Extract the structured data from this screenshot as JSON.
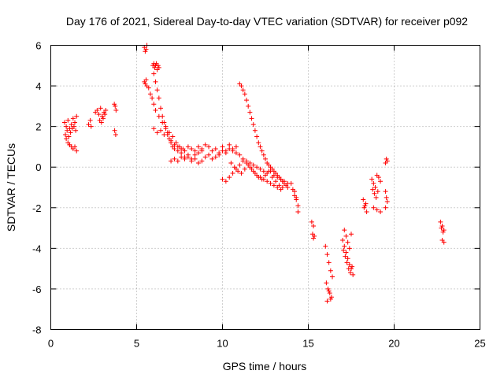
{
  "chart_data": {
    "type": "scatter",
    "title": "Day 176 of 2021, Sidereal Day-to-day VTEC variation (SDTVAR) for receiver p092",
    "xlabel": "GPS time / hours",
    "ylabel": "SDTVAR / TECUs",
    "xlim": [
      0,
      25
    ],
    "ylim": [
      -8,
      6
    ],
    "xticks": [
      0,
      5,
      10,
      15,
      20,
      25
    ],
    "yticks": [
      -8,
      -6,
      -4,
      -2,
      0,
      2,
      4,
      6
    ],
    "grid": true,
    "marker": "+",
    "color": "#ff0000",
    "series": [
      {
        "name": "SDTVAR",
        "x": [
          0.8,
          0.9,
          1.0,
          1.1,
          1.2,
          1.3,
          1.4,
          1.5,
          0.85,
          0.95,
          1.05,
          1.15,
          1.25,
          1.35,
          1.45,
          1.1,
          1.2,
          1.3,
          1.4,
          1.5,
          0.9,
          1.0,
          1.1,
          2.2,
          2.3,
          2.35,
          2.6,
          2.7,
          2.8,
          2.9,
          3.0,
          3.1,
          3.2,
          2.85,
          2.95,
          3.05,
          3.15,
          3.7,
          3.75,
          3.8,
          3.72,
          3.78,
          5.45,
          5.5,
          5.55,
          5.6,
          5.45,
          5.5,
          5.55,
          5.6,
          5.7,
          5.8,
          5.9,
          6.0,
          6.1,
          6.3,
          6.5,
          6.7,
          6.9,
          7.1,
          7.3,
          7.5,
          7.7,
          5.95,
          6.0,
          6.05,
          6.1,
          6.15,
          6.2,
          6.25,
          6.3,
          6.0,
          6.1,
          6.2,
          6.3,
          6.4,
          6.5,
          6.6,
          6.7,
          6.8,
          6.9,
          7.0,
          7.1,
          7.2,
          7.4,
          7.6,
          7.8,
          8.0,
          8.2,
          8.4,
          8.6,
          8.8,
          6.0,
          6.2,
          6.4,
          6.6,
          6.8,
          7.0,
          7.2,
          7.4,
          7.6,
          7.8,
          8.0,
          8.2,
          8.4,
          8.6,
          8.8,
          9.0,
          9.2,
          9.4,
          9.6,
          9.8,
          10.0,
          10.2,
          10.4,
          10.6,
          10.8,
          7.0,
          7.2,
          7.4,
          7.6,
          7.8,
          8.0,
          8.2,
          8.4,
          8.6,
          8.8,
          9.0,
          9.2,
          9.4,
          9.6,
          9.8,
          10.0,
          10.2,
          10.4,
          10.6,
          10.8,
          11.0,
          11.2,
          11.4,
          11.6,
          11.8,
          12.0,
          12.2,
          12.4,
          12.6,
          12.8,
          13.0,
          13.2,
          13.4,
          13.6,
          13.8,
          11.0,
          11.1,
          11.2,
          11.3,
          11.4,
          11.5,
          11.6,
          11.7,
          11.8,
          11.9,
          12.0,
          12.1,
          12.2,
          12.3,
          12.4,
          12.5,
          12.6,
          12.7,
          12.8,
          12.9,
          13.0,
          13.1,
          13.2,
          13.3,
          13.4,
          13.5,
          13.6,
          13.7,
          13.8,
          10.0,
          10.2,
          10.4,
          10.6,
          10.8,
          11.0,
          11.2,
          11.4,
          11.6,
          11.8,
          12.0,
          12.2,
          12.4,
          12.6,
          12.8,
          13.0,
          13.2,
          13.4,
          10.5,
          10.7,
          10.9,
          11.1,
          11.3,
          11.5,
          11.7,
          11.9,
          12.1,
          12.3,
          12.5,
          12.7,
          12.9,
          13.1,
          13.3,
          13.5,
          14.0,
          14.1,
          14.2,
          14.3,
          14.4,
          14.2,
          14.3,
          14.4,
          15.2,
          15.3,
          15.25,
          15.3,
          15.35,
          16.0,
          16.1,
          16.2,
          16.3,
          16.4,
          16.05,
          16.15,
          16.25,
          16.35,
          16.1,
          16.2,
          16.3,
          17.0,
          17.1,
          17.2,
          17.3,
          17.4,
          17.5,
          17.6,
          17.05,
          17.15,
          17.25,
          17.35,
          17.45,
          17.55,
          17.1,
          17.2,
          17.3,
          17.4,
          17.5,
          18.2,
          18.3,
          18.4,
          18.25,
          18.35,
          18.7,
          18.8,
          18.9,
          19.0,
          19.1,
          19.2,
          18.75,
          18.85,
          18.95,
          19.05,
          18.8,
          19.0,
          19.2,
          19.5,
          19.55,
          19.6,
          19.5,
          19.55,
          19.6,
          19.5,
          22.7,
          22.8,
          22.9,
          22.75,
          22.85,
          22.8,
          22.9
        ],
        "y": [
          2.2,
          2.0,
          2.3,
          1.9,
          2.1,
          2.4,
          2.2,
          2.5,
          1.6,
          1.8,
          1.5,
          1.7,
          1.9,
          2.0,
          1.8,
          1.1,
          1.0,
          0.9,
          1.0,
          0.8,
          1.4,
          1.2,
          1.1,
          2.1,
          2.3,
          2.0,
          2.7,
          2.8,
          2.6,
          2.9,
          2.5,
          2.7,
          2.8,
          2.3,
          2.2,
          2.4,
          2.6,
          3.1,
          3.0,
          2.8,
          1.8,
          1.6,
          5.9,
          5.7,
          5.8,
          6.0,
          4.2,
          4.1,
          4.3,
          4.0,
          3.9,
          3.6,
          3.4,
          3.1,
          2.8,
          2.5,
          2.2,
          2.0,
          1.7,
          1.5,
          1.2,
          1.0,
          0.9,
          5.0,
          5.1,
          4.9,
          5.0,
          5.1,
          4.8,
          5.0,
          4.9,
          4.6,
          4.2,
          3.8,
          3.4,
          2.9,
          2.5,
          2.2,
          1.9,
          1.6,
          1.4,
          1.2,
          1.0,
          0.9,
          0.8,
          0.7,
          0.5,
          0.6,
          0.4,
          0.6,
          0.7,
          0.8,
          1.9,
          1.7,
          1.8,
          1.6,
          1.7,
          1.3,
          1.1,
          1.0,
          0.9,
          0.8,
          1.0,
          0.9,
          0.8,
          1.0,
          0.9,
          1.1,
          1.0,
          0.8,
          0.9,
          0.7,
          1.0,
          0.8,
          1.1,
          0.9,
          1.0,
          0.3,
          0.4,
          0.3,
          0.5,
          0.4,
          0.5,
          0.3,
          0.4,
          0.2,
          0.3,
          0.5,
          0.6,
          0.4,
          0.5,
          0.6,
          0.8,
          0.7,
          0.9,
          0.8,
          0.7,
          0.6,
          0.4,
          0.3,
          0.2,
          0.1,
          0.0,
          -0.1,
          -0.2,
          -0.3,
          -0.2,
          -0.4,
          -0.5,
          -0.6,
          -0.7,
          -0.8,
          4.1,
          4.0,
          3.8,
          3.6,
          3.3,
          3.0,
          2.7,
          2.4,
          2.1,
          1.8,
          1.5,
          1.2,
          1.0,
          0.8,
          0.6,
          0.4,
          0.2,
          0.1,
          0.0,
          -0.1,
          -0.2,
          -0.3,
          -0.4,
          -0.5,
          -0.6,
          -0.7,
          -0.8,
          -0.9,
          -1.0,
          -0.6,
          -0.7,
          -0.5,
          -0.3,
          -0.1,
          0.1,
          0.3,
          0.2,
          0.0,
          -0.2,
          -0.4,
          -0.5,
          -0.6,
          -0.7,
          -0.8,
          -0.9,
          -1.0,
          -1.1,
          0.2,
          0.0,
          -0.2,
          -0.3,
          -0.1,
          0.1,
          -0.1,
          -0.3,
          -0.5,
          -0.6,
          -0.4,
          -0.2,
          -0.5,
          -0.7,
          -0.9,
          -1.0,
          -0.8,
          -1.1,
          -1.4,
          -1.6,
          -1.9,
          -1.2,
          -1.5,
          -2.2,
          -2.7,
          -2.9,
          -3.3,
          -3.5,
          -3.4,
          -3.9,
          -4.3,
          -4.7,
          -5.1,
          -5.4,
          -5.7,
          -6.0,
          -6.2,
          -6.4,
          -6.6,
          -6.1,
          -6.5,
          -3.6,
          -3.9,
          -4.2,
          -4.5,
          -4.8,
          -5.0,
          -5.3,
          -4.1,
          -4.4,
          -4.7,
          -5.0,
          -5.2,
          -4.9,
          -3.1,
          -3.4,
          -3.7,
          -4.0,
          -3.3,
          -1.6,
          -1.9,
          -2.2,
          -2.0,
          -1.8,
          -0.6,
          -0.8,
          -1.0,
          -0.4,
          -0.5,
          -0.7,
          -1.1,
          -1.3,
          -1.5,
          -1.2,
          -2.0,
          -2.1,
          -2.2,
          0.2,
          0.4,
          0.3,
          -1.2,
          -1.5,
          -1.7,
          -2.0,
          -2.7,
          -2.9,
          -3.1,
          -3.0,
          -3.2,
          -3.6,
          -3.7
        ]
      }
    ]
  }
}
